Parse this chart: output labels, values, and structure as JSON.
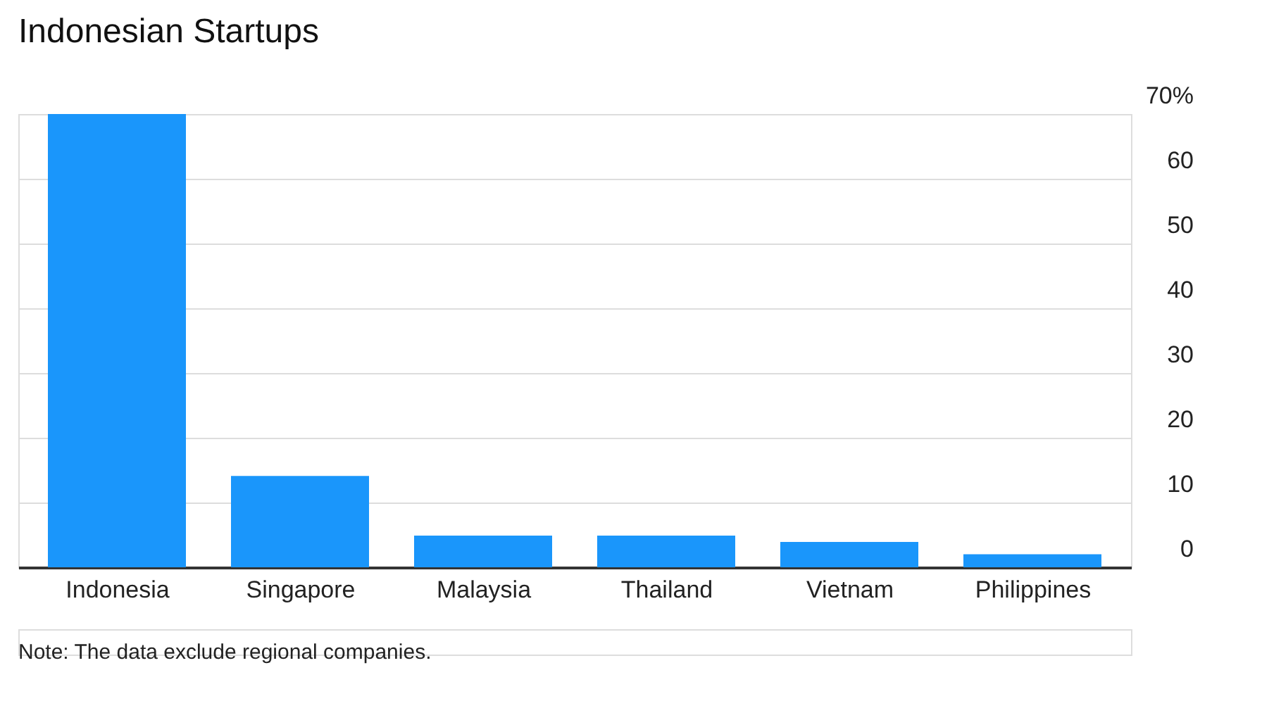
{
  "chart_data": {
    "type": "bar",
    "title": "Indonesian Startups",
    "categories": [
      "Indonesia",
      "Singapore",
      "Malaysia",
      "Thailand",
      "Vietnam",
      "Philippines"
    ],
    "values": [
      70,
      14.1,
      4.9,
      4.9,
      3.9,
      2.0
    ],
    "color": "#1a96fb",
    "ylim": [
      0,
      70
    ],
    "yticks": [
      0,
      10,
      20,
      30,
      40,
      50,
      60,
      {
        "value": 70,
        "label": "70%"
      }
    ],
    "grid": "y",
    "legend": false,
    "annotations": [
      "Note: The data exclude regional companies."
    ]
  }
}
